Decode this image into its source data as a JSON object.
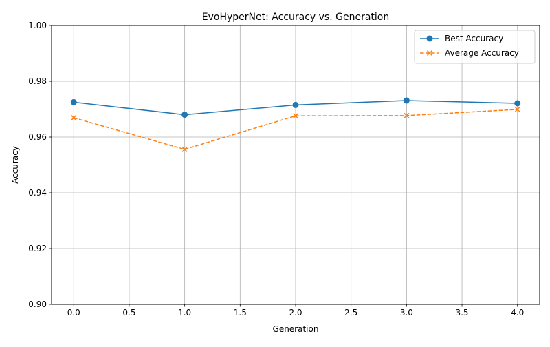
{
  "chart_data": {
    "type": "line",
    "title": "EvoHyperNet: Accuracy vs. Generation",
    "xlabel": "Generation",
    "ylabel": "Accuracy",
    "xlim": [
      -0.2,
      4.2
    ],
    "ylim": [
      0.9,
      1.0
    ],
    "xticks": [
      0.0,
      0.5,
      1.0,
      1.5,
      2.0,
      2.5,
      3.0,
      3.5,
      4.0
    ],
    "xtick_labels": [
      "0.0",
      "0.5",
      "1.0",
      "1.5",
      "2.0",
      "2.5",
      "3.0",
      "3.5",
      "4.0"
    ],
    "yticks": [
      0.9,
      0.92,
      0.94,
      0.96,
      0.98,
      1.0
    ],
    "ytick_labels": [
      "0.90",
      "0.92",
      "0.94",
      "0.96",
      "0.98",
      "1.00"
    ],
    "grid": true,
    "legend_position": "top-right",
    "x": [
      0,
      1,
      2,
      3,
      4
    ],
    "series": [
      {
        "name": "Best Accuracy",
        "values": [
          0.9725,
          0.968,
          0.9715,
          0.9731,
          0.9721
        ],
        "color": "#1f77b4",
        "marker": "circle",
        "line_style": "solid"
      },
      {
        "name": "Average Accuracy",
        "values": [
          0.9669,
          0.9556,
          0.9676,
          0.9677,
          0.9699
        ],
        "color": "#ff7f0e",
        "marker": "x",
        "line_style": "dashed"
      }
    ]
  }
}
